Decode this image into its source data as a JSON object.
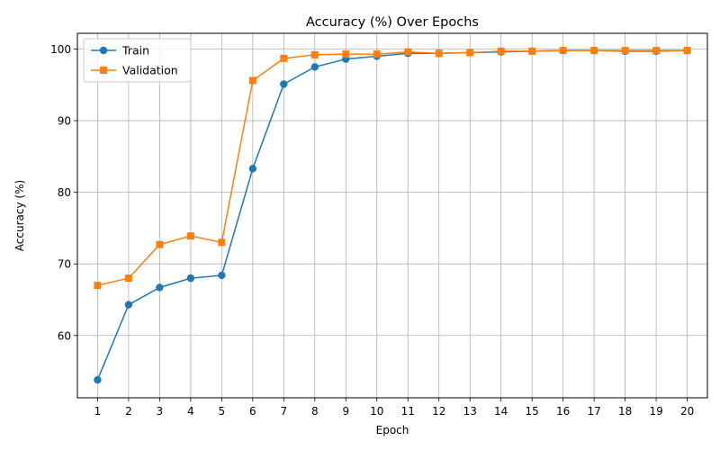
{
  "chart_data": {
    "type": "line",
    "title": "Accuracy (%) Over Epochs",
    "xlabel": "Epoch",
    "ylabel": "Accuracy (%)",
    "x": [
      1,
      2,
      3,
      4,
      5,
      6,
      7,
      8,
      9,
      10,
      11,
      12,
      13,
      14,
      15,
      16,
      17,
      18,
      19,
      20
    ],
    "xlim": [
      0.35,
      20.65
    ],
    "ylim": [
      51.3,
      102.2
    ],
    "yticks": [
      60,
      70,
      80,
      90,
      100
    ],
    "grid": true,
    "legend_position": "top-left",
    "series": [
      {
        "name": "Train",
        "color": "#1f77b4",
        "marker": "circle",
        "values": [
          53.8,
          64.3,
          66.7,
          68.0,
          68.4,
          83.3,
          95.1,
          97.5,
          98.6,
          99.0,
          99.4,
          99.4,
          99.5,
          99.6,
          99.7,
          99.8,
          99.8,
          99.7,
          99.7,
          99.8
        ]
      },
      {
        "name": "Validation",
        "color": "#ff7f0e",
        "marker": "square",
        "values": [
          67.0,
          68.0,
          72.7,
          73.9,
          73.0,
          95.6,
          98.7,
          99.2,
          99.3,
          99.3,
          99.6,
          99.4,
          99.5,
          99.7,
          99.7,
          99.8,
          99.8,
          99.8,
          99.8,
          99.8
        ]
      }
    ]
  }
}
